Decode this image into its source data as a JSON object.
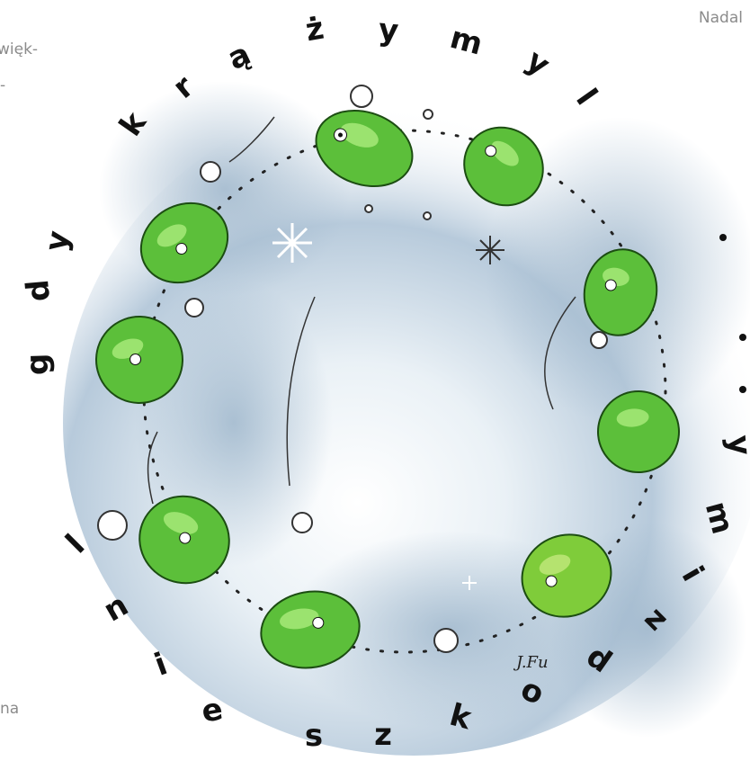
{
  "margin_text": {
    "top_right_word": "Nadal",
    "second_line_fragment": "więk-",
    "third_line_fragment": "-",
    "bottom_fragment": "na"
  },
  "ring_text": {
    "top_arc": [
      "k",
      "r",
      "ą",
      "ż",
      "y",
      "m",
      "y",
      "l"
    ],
    "left_arc": [
      "y",
      "d",
      "g"
    ],
    "bottom_arc": [
      "l",
      "n",
      "i",
      "e",
      "s",
      "z",
      "k",
      "o",
      "d",
      "z",
      "i",
      "m",
      "y"
    ],
    "trailing_dots": "..."
  },
  "illustration": {
    "signature": "J.Fu"
  },
  "colors": {
    "cloud_blue": "#9fb7cc",
    "creature_green": "#5cbf3a",
    "creature_dark_green": "#2e8a22",
    "snowball": "#ffffff",
    "margin_text": "#8b8b8b"
  }
}
